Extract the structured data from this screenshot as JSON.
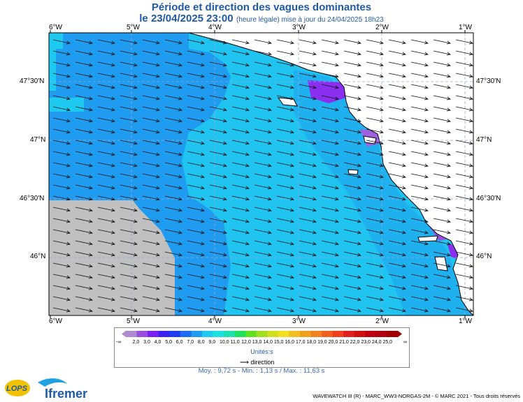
{
  "title": "Période et direction des vagues dominantes",
  "subtitle": {
    "date": "le 23/04/2025 23:00",
    "note": "(heure légale) mise à jour du 24/04/2025 18h23"
  },
  "map": {
    "lon_labels": [
      "6°W",
      "5°W",
      "4°W",
      "3°W",
      "2°W",
      "1°W"
    ],
    "lat_labels": [
      "47°30'N",
      "47°N",
      "46°30'N",
      "46°N"
    ]
  },
  "legend": {
    "ticks": [
      "2,0",
      "3,0",
      "4,0",
      "5,0",
      "6,0",
      "7,0",
      "8,0",
      "9,0",
      "10,0",
      "11,0",
      "12,0",
      "13,0",
      "14,0",
      "15,0",
      "16,0",
      "17,0",
      "18,0",
      "19,0",
      "20,0",
      "21,0",
      "22,0",
      "23,0",
      "24,0",
      "25,0"
    ],
    "left_end": "-∞",
    "right_end": "∞",
    "unit_label": "Unités:s",
    "direction_label": "direction",
    "colors": [
      "#b08ad0",
      "#9b4de0",
      "#7a1ff0",
      "#3a1ff0",
      "#1f3cf0",
      "#1f6cf0",
      "#1f9cf0",
      "#1fcaf0",
      "#1fe0e0",
      "#1fe0b0",
      "#20e060",
      "#60e020",
      "#a0e020",
      "#d0e020",
      "#f0e020",
      "#f0c020",
      "#f0a020",
      "#f08020",
      "#f06020",
      "#f04020",
      "#e02020",
      "#d01010",
      "#c00010",
      "#b00010",
      "#a00000"
    ],
    "icons": [
      "arrow-icon"
    ]
  },
  "stats": "Moy. : 9,72 s   -   Min. : 1,13 s / Max. : 11,63 s",
  "credit": "WAVEWATCH III (R) - MARC_WW3-NORGAS-2M - © MARC 2021 - Tous droits réservés",
  "logos": {
    "lops": "LOPS",
    "ifremer": "Ifremer"
  }
}
